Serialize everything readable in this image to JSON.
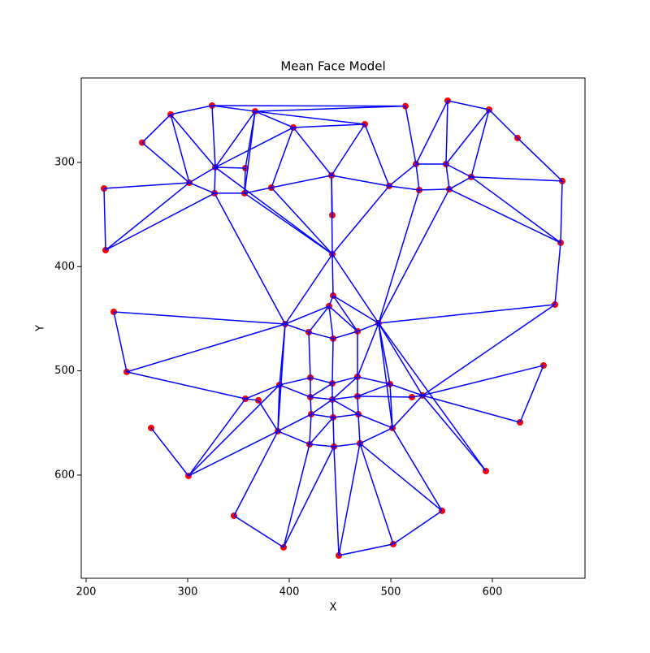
{
  "chart_data": {
    "type": "mesh",
    "title": "Mean Face Model",
    "xlabel": "X",
    "ylabel": "Y",
    "x": [
      324,
      283.2,
      255.2,
      366.4,
      404,
      474.4,
      514.4,
      556,
      596.8,
      624.8,
      668.8,
      217.6,
      301.6,
      327.2,
      356.8,
      326.4,
      356,
      382.4,
      441.6,
      498.4,
      524.8,
      528,
      554.4,
      557.6,
      579.2,
      442.4,
      219.2,
      667.2,
      442.4,
      227.2,
      443.2,
      439.2,
      396,
      419.2,
      443.2,
      467.2,
      488,
      661.6,
      240,
      650.4,
      390.4,
      420.8,
      442.4,
      467.2,
      499.2,
      356.8,
      369.6,
      420.8,
      442.4,
      467.2,
      520.8,
      531.2,
      627.2,
      264,
      388.8,
      421.6,
      443.2,
      468,
      501.6,
      420,
      444,
      469.6,
      300.8,
      593.6,
      345.6,
      550.4,
      394.4,
      448.8,
      502.4
    ],
    "y": [
      245.5,
      254,
      281,
      251,
      266.5,
      263.4,
      246,
      240.8,
      249.4,
      276.6,
      317.9,
      325,
      319.5,
      304.7,
      305.5,
      329.6,
      329.6,
      324.2,
      312.5,
      322.6,
      301.6,
      326.5,
      301.6,
      325.7,
      314,
      350.6,
      384.2,
      377.1,
      388,
      443.4,
      427.8,
      437.9,
      455.1,
      462.9,
      469.1,
      462.1,
      454.3,
      436.4,
      501,
      494.8,
      513.5,
      506.5,
      512,
      505.7,
      512.7,
      526.8,
      528.3,
      525.2,
      527.5,
      524.4,
      525.2,
      523.6,
      549.4,
      554.8,
      557.9,
      541.6,
      544.7,
      541.6,
      554.8,
      570.4,
      572.7,
      569.6,
      600.8,
      596.1,
      639,
      634.3,
      669.3,
      677.1,
      666.2
    ],
    "edges": [
      [
        1,
        2
      ],
      [
        1,
        0
      ],
      [
        1,
        13
      ],
      [
        1,
        12
      ],
      [
        2,
        12
      ],
      [
        0,
        13
      ],
      [
        0,
        3
      ],
      [
        0,
        6
      ],
      [
        3,
        6
      ],
      [
        3,
        5
      ],
      [
        3,
        4
      ],
      [
        3,
        13
      ],
      [
        3,
        14
      ],
      [
        3,
        16
      ],
      [
        4,
        5
      ],
      [
        4,
        17
      ],
      [
        4,
        18
      ],
      [
        4,
        13
      ],
      [
        5,
        18
      ],
      [
        5,
        19
      ],
      [
        6,
        20
      ],
      [
        7,
        20
      ],
      [
        7,
        22
      ],
      [
        7,
        8
      ],
      [
        8,
        22
      ],
      [
        8,
        24
      ],
      [
        8,
        9
      ],
      [
        9,
        10
      ],
      [
        10,
        24
      ],
      [
        24,
        22
      ],
      [
        24,
        27
      ],
      [
        24,
        23
      ],
      [
        22,
        20
      ],
      [
        22,
        23
      ],
      [
        20,
        21
      ],
      [
        20,
        19
      ],
      [
        19,
        21
      ],
      [
        21,
        23
      ],
      [
        23,
        27
      ],
      [
        23,
        36
      ],
      [
        21,
        36
      ],
      [
        19,
        28
      ],
      [
        18,
        19
      ],
      [
        18,
        25
      ],
      [
        18,
        28
      ],
      [
        18,
        17
      ],
      [
        17,
        16
      ],
      [
        17,
        28
      ],
      [
        14,
        13
      ],
      [
        14,
        16
      ],
      [
        13,
        15
      ],
      [
        13,
        12
      ],
      [
        13,
        28
      ],
      [
        12,
        11
      ],
      [
        12,
        15
      ],
      [
        12,
        26
      ],
      [
        11,
        26
      ],
      [
        15,
        26
      ],
      [
        15,
        16
      ],
      [
        15,
        32
      ],
      [
        16,
        28
      ],
      [
        28,
        32
      ],
      [
        28,
        30
      ],
      [
        28,
        36
      ],
      [
        27,
        10
      ],
      [
        27,
        37
      ],
      [
        37,
        36
      ],
      [
        37,
        51
      ],
      [
        29,
        32
      ],
      [
        29,
        38
      ],
      [
        38,
        32
      ],
      [
        38,
        45
      ],
      [
        32,
        31
      ],
      [
        32,
        33
      ],
      [
        32,
        40
      ],
      [
        32,
        54
      ],
      [
        30,
        31
      ],
      [
        30,
        35
      ],
      [
        30,
        36
      ],
      [
        31,
        33
      ],
      [
        31,
        34
      ],
      [
        31,
        35
      ],
      [
        33,
        34
      ],
      [
        33,
        41
      ],
      [
        34,
        35
      ],
      [
        34,
        42
      ],
      [
        35,
        36
      ],
      [
        35,
        43
      ],
      [
        36,
        43
      ],
      [
        36,
        44
      ],
      [
        36,
        51
      ],
      [
        36,
        63
      ],
      [
        36,
        58
      ],
      [
        40,
        41
      ],
      [
        40,
        45
      ],
      [
        40,
        54
      ],
      [
        40,
        47
      ],
      [
        41,
        42
      ],
      [
        41,
        47
      ],
      [
        42,
        43
      ],
      [
        42,
        48
      ],
      [
        42,
        47
      ],
      [
        43,
        44
      ],
      [
        43,
        49
      ],
      [
        43,
        48
      ],
      [
        44,
        49
      ],
      [
        44,
        51
      ],
      [
        44,
        58
      ],
      [
        49,
        48
      ],
      [
        49,
        57
      ],
      [
        49,
        50
      ],
      [
        50,
        51
      ],
      [
        51,
        58
      ],
      [
        51,
        39
      ],
      [
        51,
        52
      ],
      [
        39,
        52
      ],
      [
        45,
        46
      ],
      [
        45,
        62
      ],
      [
        53,
        62
      ],
      [
        62,
        40
      ],
      [
        62,
        54
      ],
      [
        64,
        54
      ],
      [
        64,
        66
      ],
      [
        54,
        59
      ],
      [
        54,
        55
      ],
      [
        55,
        47
      ],
      [
        55,
        56
      ],
      [
        55,
        59
      ],
      [
        47,
        48
      ],
      [
        48,
        56
      ],
      [
        48,
        55
      ],
      [
        56,
        57
      ],
      [
        56,
        60
      ],
      [
        56,
        59
      ],
      [
        57,
        58
      ],
      [
        57,
        61
      ],
      [
        57,
        48
      ],
      [
        58,
        61
      ],
      [
        58,
        65
      ],
      [
        59,
        60
      ],
      [
        59,
        66
      ],
      [
        60,
        66
      ],
      [
        60,
        61
      ],
      [
        60,
        67
      ],
      [
        61,
        67
      ],
      [
        61,
        68
      ],
      [
        61,
        65
      ],
      [
        65,
        68
      ],
      [
        67,
        68
      ],
      [
        46,
        54
      ],
      [
        51,
        63
      ]
    ],
    "color": "#ff0000",
    "edge_color": "#0000ff",
    "xlim": [
      195.2,
      691.2
    ],
    "ylim": [
      699,
      219
    ],
    "xticks": [
      200,
      300,
      400,
      500,
      600
    ],
    "yticks": [
      300,
      400,
      500,
      600
    ]
  }
}
